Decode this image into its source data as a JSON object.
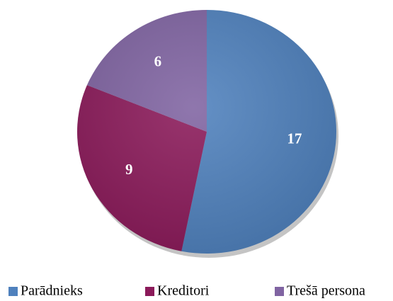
{
  "chart_data": {
    "type": "pie",
    "categories": [
      "Parādnieks",
      "Kreditori",
      "Trešā persona"
    ],
    "values": [
      17,
      9,
      6
    ],
    "colors": [
      "#4f81bd",
      "#8b1a5a",
      "#8064a2"
    ],
    "legend": "bottom"
  }
}
